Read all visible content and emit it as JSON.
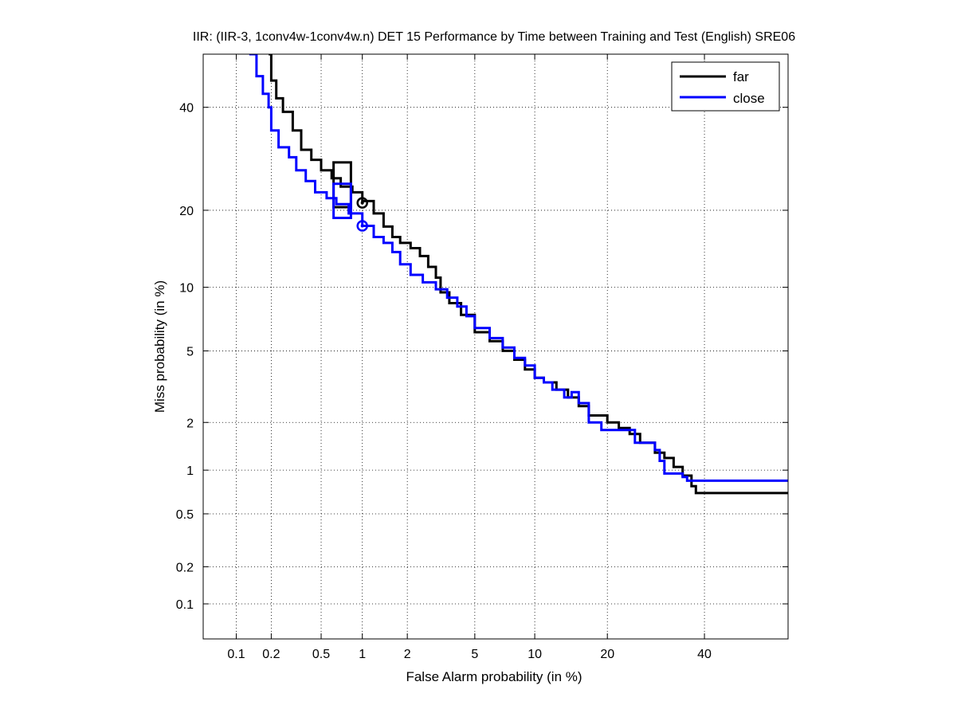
{
  "chart_data": {
    "type": "line",
    "scale": "probit",
    "title": "IIR: (IIR-3, 1conv4w-1conv4w.n) DET 15 Performance by Time between Training and Test (English) SRE06",
    "xlabel": "False Alarm probability (in %)",
    "ylabel": "Miss probability (in %)",
    "xlim": [
      0.05,
      60
    ],
    "ylim": [
      0.05,
      52
    ],
    "x_ticks": [
      0.1,
      0.2,
      0.5,
      1,
      2,
      5,
      10,
      20,
      40
    ],
    "x_tick_labels": [
      "0.1",
      "0.2",
      "0.5",
      "1",
      "2",
      "5",
      "10",
      "20",
      "40"
    ],
    "y_ticks": [
      0.1,
      0.2,
      0.5,
      1,
      2,
      5,
      10,
      20,
      40
    ],
    "y_tick_labels": [
      "0.1",
      "0.2",
      "0.5",
      "1",
      "2",
      "5",
      "10",
      "20",
      "40"
    ],
    "grid": true,
    "legend_position": "top-right",
    "series": [
      {
        "name": "far",
        "color": "#000000",
        "points": [
          [
            0.19,
            52
          ],
          [
            0.2,
            46
          ],
          [
            0.22,
            42
          ],
          [
            0.25,
            39
          ],
          [
            0.3,
            35
          ],
          [
            0.35,
            31
          ],
          [
            0.42,
            29
          ],
          [
            0.5,
            27
          ],
          [
            0.6,
            25.5
          ],
          [
            0.7,
            24
          ],
          [
            0.85,
            23
          ],
          [
            1.0,
            21.5
          ],
          [
            1.2,
            19.5
          ],
          [
            1.4,
            17.5
          ],
          [
            1.6,
            16
          ],
          [
            1.8,
            15.2
          ],
          [
            2.1,
            14.5
          ],
          [
            2.4,
            13.5
          ],
          [
            2.7,
            12.2
          ],
          [
            3.0,
            11
          ],
          [
            3.2,
            9.5
          ],
          [
            3.6,
            8.5
          ],
          [
            4.2,
            7.5
          ],
          [
            5.0,
            6.2
          ],
          [
            6.0,
            5.6
          ],
          [
            7.0,
            5.0
          ],
          [
            8.0,
            4.5
          ],
          [
            9.0,
            4.0
          ],
          [
            10.0,
            3.6
          ],
          [
            11.0,
            3.4
          ],
          [
            12.5,
            3.1
          ],
          [
            14.0,
            2.8
          ],
          [
            15.5,
            2.5
          ],
          [
            17.0,
            2.2
          ],
          [
            20.0,
            2.0
          ],
          [
            22.0,
            1.85
          ],
          [
            24.0,
            1.7
          ],
          [
            26.0,
            1.5
          ],
          [
            29.0,
            1.3
          ],
          [
            31.0,
            1.2
          ],
          [
            33.0,
            1.05
          ],
          [
            35.0,
            0.92
          ],
          [
            37.0,
            0.78
          ],
          [
            38.0,
            0.7
          ],
          [
            60,
            0.7
          ]
        ],
        "operating_point": {
          "fa": 1.0,
          "miss": 21.2
        },
        "ci_box": {
          "fa": [
            0.62,
            0.83
          ],
          "miss": [
            20.5,
            28.5
          ]
        }
      },
      {
        "name": "close",
        "color": "#0000ff",
        "points": [
          [
            0.13,
            52
          ],
          [
            0.15,
            47
          ],
          [
            0.17,
            43
          ],
          [
            0.19,
            40
          ],
          [
            0.2,
            35
          ],
          [
            0.23,
            31.5
          ],
          [
            0.28,
            29.5
          ],
          [
            0.32,
            27
          ],
          [
            0.38,
            25
          ],
          [
            0.45,
            23
          ],
          [
            0.55,
            22
          ],
          [
            0.65,
            21
          ],
          [
            0.8,
            19.5
          ],
          [
            1.0,
            17.6
          ],
          [
            1.2,
            16
          ],
          [
            1.4,
            15.2
          ],
          [
            1.6,
            14
          ],
          [
            1.8,
            12.5
          ],
          [
            2.1,
            11.3
          ],
          [
            2.5,
            10.5
          ],
          [
            3.0,
            9.8
          ],
          [
            3.5,
            9.0
          ],
          [
            4.0,
            8.2
          ],
          [
            4.5,
            7.4
          ],
          [
            5.0,
            6.5
          ],
          [
            6.0,
            5.8
          ],
          [
            7.0,
            5.2
          ],
          [
            8.0,
            4.6
          ],
          [
            9.0,
            4.2
          ],
          [
            10.0,
            3.6
          ],
          [
            11.0,
            3.4
          ],
          [
            12.0,
            3.1
          ],
          [
            13.5,
            2.8
          ],
          [
            14.5,
            3.0
          ],
          [
            15.5,
            2.6
          ],
          [
            17.0,
            2.0
          ],
          [
            19.0,
            1.8
          ],
          [
            24.0,
            1.8
          ],
          [
            25.0,
            1.5
          ],
          [
            29.0,
            1.35
          ],
          [
            30.0,
            1.15
          ],
          [
            31.0,
            0.95
          ],
          [
            35.0,
            0.9
          ],
          [
            36.0,
            0.85
          ],
          [
            60,
            0.85
          ]
        ],
        "operating_point": {
          "fa": 1.0,
          "miss": 17.6
        },
        "ci_box": {
          "fa": [
            0.62,
            0.83
          ],
          "miss": [
            18.8,
            24.5
          ]
        }
      }
    ]
  }
}
